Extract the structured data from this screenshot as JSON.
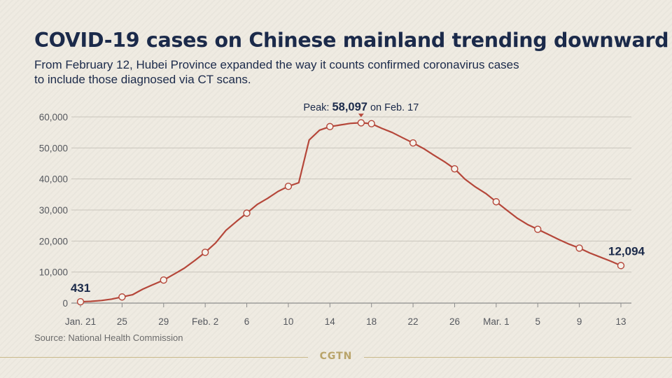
{
  "header": {
    "title": "COVID-19 cases on Chinese mainland trending downward",
    "subtitle": "From February 12, Hubei Province expanded the way it counts confirmed coronavirus cases to include those diagnosed via CT scans."
  },
  "footer": {
    "source": "Source: National Health Commission",
    "logo": "CGTN"
  },
  "colors": {
    "line": "#b5473a",
    "marker_fill": "#f6f3ec",
    "title": "#1b2a4a",
    "grid": "#c9c5bc",
    "axis_text": "#55585e"
  },
  "chart_data": {
    "type": "line",
    "title": "",
    "xlabel": "",
    "ylabel": "",
    "ylim": [
      0,
      60000
    ],
    "y_ticks": [
      0,
      10000,
      20000,
      30000,
      40000,
      50000,
      60000
    ],
    "y_tick_labels": [
      "0",
      "10,000",
      "20,000",
      "30,000",
      "40,000",
      "50,000",
      "60,000"
    ],
    "x_range": [
      "2020-01-21",
      "2020-03-13"
    ],
    "x_ticks": [
      "2020-01-21",
      "2020-01-25",
      "2020-01-29",
      "2020-02-02",
      "2020-02-06",
      "2020-02-10",
      "2020-02-14",
      "2020-02-18",
      "2020-02-22",
      "2020-02-26",
      "2020-03-01",
      "2020-03-05",
      "2020-03-09",
      "2020-03-13"
    ],
    "x_tick_labels": [
      "Jan. 21",
      "25",
      "29",
      "Feb. 2",
      "6",
      "10",
      "14",
      "18",
      "22",
      "26",
      "Mar. 1",
      "5",
      "9",
      "13"
    ],
    "grid": true,
    "series": [
      {
        "name": "",
        "x": [
          "2020-01-21",
          "2020-01-22",
          "2020-01-23",
          "2020-01-24",
          "2020-01-25",
          "2020-01-26",
          "2020-01-27",
          "2020-01-28",
          "2020-01-29",
          "2020-01-30",
          "2020-01-31",
          "2020-02-01",
          "2020-02-02",
          "2020-02-03",
          "2020-02-04",
          "2020-02-05",
          "2020-02-06",
          "2020-02-07",
          "2020-02-08",
          "2020-02-09",
          "2020-02-10",
          "2020-02-11",
          "2020-02-12",
          "2020-02-13",
          "2020-02-14",
          "2020-02-15",
          "2020-02-16",
          "2020-02-17",
          "2020-02-18",
          "2020-02-19",
          "2020-02-20",
          "2020-02-21",
          "2020-02-22",
          "2020-02-23",
          "2020-02-24",
          "2020-02-25",
          "2020-02-26",
          "2020-02-27",
          "2020-02-28",
          "2020-02-29",
          "2020-03-01",
          "2020-03-02",
          "2020-03-03",
          "2020-03-04",
          "2020-03-05",
          "2020-03-06",
          "2020-03-07",
          "2020-03-08",
          "2020-03-09",
          "2020-03-10",
          "2020-03-11",
          "2020-03-12",
          "2020-03-13"
        ],
        "values": [
          431,
          571,
          830,
          1287,
          1975,
          2684,
          4515,
          5974,
          7426,
          9308,
          11289,
          13748,
          16369,
          19381,
          23435,
          26302,
          28985,
          31774,
          33738,
          35982,
          37626,
          38800,
          52526,
          55748,
          56873,
          57416,
          57934,
          58097,
          57805,
          56303,
          54965,
          53284,
          51606,
          49824,
          47672,
          45604,
          43258,
          39919,
          37414,
          35329,
          32652,
          30004,
          27433,
          25352,
          23784,
          22177,
          20533,
          19016,
          17721,
          16145,
          14831,
          13526,
          12094
        ],
        "markers": [
          "2020-01-21",
          "2020-01-25",
          "2020-01-29",
          "2020-02-02",
          "2020-02-06",
          "2020-02-10",
          "2020-02-14",
          "2020-02-17",
          "2020-02-18",
          "2020-02-22",
          "2020-02-26",
          "2020-03-01",
          "2020-03-05",
          "2020-03-09",
          "2020-03-13"
        ]
      }
    ],
    "annotations": {
      "start": {
        "date": "2020-01-21",
        "label": "431"
      },
      "peak": {
        "date": "2020-02-17",
        "prefix": "Peak: ",
        "value": "58,097",
        "suffix": " on Feb. 17"
      },
      "end": {
        "date": "2020-03-13",
        "label": "12,094"
      }
    }
  }
}
